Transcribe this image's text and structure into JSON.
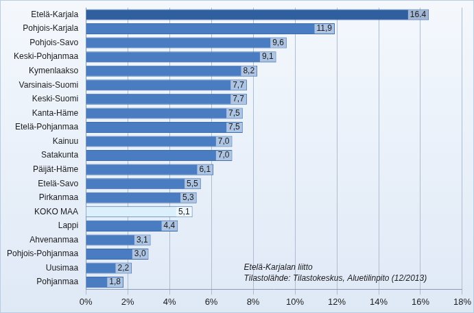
{
  "chart_data": {
    "type": "bar",
    "orientation": "horizontal",
    "categories": [
      "Etelä-Karjala",
      "Pohjois-Karjala",
      "Pohjois-Savo",
      "Keski-Pohjanmaa",
      "Kymenlaakso",
      "Varsinais-Suomi",
      "Keski-Suomi",
      "Kanta-Häme",
      "Etelä-Pohjanmaa",
      "Kainuu",
      "Satakunta",
      "Päijät-Häme",
      "Etelä-Savo",
      "Pirkanmaa",
      "KOKO MAA",
      "Lappi",
      "Ahvenanmaa",
      "Pohjois-Pohjanmaa",
      "Uusimaa",
      "Pohjanmaa"
    ],
    "values": [
      16.4,
      11.9,
      9.6,
      9.1,
      8.2,
      7.7,
      7.7,
      7.5,
      7.5,
      7.0,
      7.0,
      6.1,
      5.5,
      5.3,
      5.1,
      4.4,
      3.1,
      3.0,
      2.2,
      1.8
    ],
    "value_labels": [
      "16.4",
      "11,9",
      "9,6",
      "9,1",
      "8,2",
      "7,7",
      "7,7",
      "7,5",
      "7,5",
      "7,0",
      "7,0",
      "6,1",
      "5,5",
      "5,3",
      "5,1",
      "4,4",
      "3,1",
      "3,0",
      "2,2",
      "1,8"
    ],
    "data_labels": true,
    "colors": [
      "#2f5f9e",
      "#4a7cc2",
      "#4a7cc2",
      "#4a7cc2",
      "#4a7cc2",
      "#4a7cc2",
      "#4a7cc2",
      "#4a7cc2",
      "#4a7cc2",
      "#4a7cc2",
      "#4a7cc2",
      "#4a7cc2",
      "#4a7cc2",
      "#4a7cc2",
      "#dcf0fb",
      "#4a7cc2",
      "#4a7cc2",
      "#4a7cc2",
      "#4a7cc2",
      "#4a7cc2"
    ],
    "xlim": [
      0,
      18
    ],
    "xticks": [
      {
        "value": 0,
        "label": "0%"
      },
      {
        "value": 2,
        "label": "2%"
      },
      {
        "value": 4,
        "label": "4%"
      },
      {
        "value": 6,
        "label": "6%"
      },
      {
        "value": 8,
        "label": "8%"
      },
      {
        "value": 10,
        "label": "10%"
      },
      {
        "value": 12,
        "label": "12%"
      },
      {
        "value": 14,
        "label": "14%"
      },
      {
        "value": 16,
        "label": "16%"
      },
      {
        "value": 18,
        "label": "18%"
      }
    ],
    "grid": true,
    "annotations": [
      "Etelä-Karjalan liitto",
      "Tilastolähde: Tilastokeskus, Aluetilinpito (12/2013)"
    ]
  }
}
